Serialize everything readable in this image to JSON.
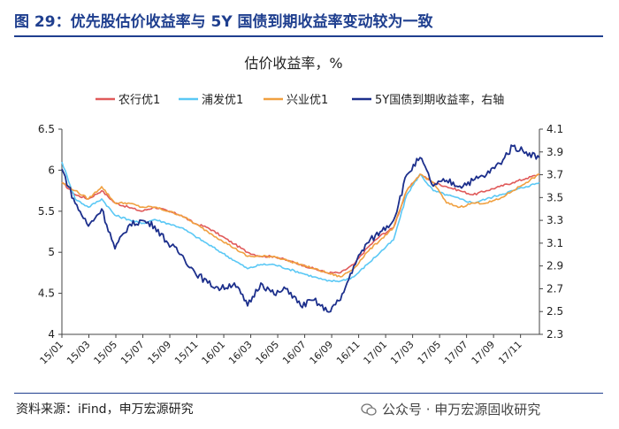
{
  "figure": {
    "title": "图 29：优先股估价收益率与 5Y 国债到期收益率变动较为一致",
    "source": "资料来源：iFind，申万宏源研究",
    "watermark": "公众号 · 申万宏源固收研究"
  },
  "chart_data": {
    "type": "line",
    "title": "估价收益率，%",
    "x_tick_labels": [
      "15/01",
      "15/03",
      "15/05",
      "15/07",
      "15/09",
      "15/11",
      "16/01",
      "16/03",
      "16/05",
      "16/07",
      "16/09",
      "16/11",
      "17/01",
      "17/03",
      "17/05",
      "17/07",
      "17/09",
      "17/11"
    ],
    "y_left": {
      "ticks": [
        "4",
        "4.5",
        "5",
        "5.5",
        "6",
        "6.5"
      ],
      "ylim": [
        4,
        6.5
      ]
    },
    "y_right": {
      "ticks": [
        "2.3",
        "2.5",
        "2.7",
        "2.9",
        "3.1",
        "3.3",
        "3.5",
        "3.7",
        "3.9",
        "4.1"
      ],
      "ylim": [
        2.3,
        4.1
      ]
    },
    "x_range": [
      0,
      36
    ],
    "series": [
      {
        "name": "农行优1",
        "axis": "left",
        "color": "#e05a5a",
        "points": [
          [
            0,
            5.85
          ],
          [
            1,
            5.7
          ],
          [
            2,
            5.65
          ],
          [
            3,
            5.75
          ],
          [
            4,
            5.6
          ],
          [
            5,
            5.55
          ],
          [
            6,
            5.5
          ],
          [
            7,
            5.55
          ],
          [
            8,
            5.5
          ],
          [
            9,
            5.45
          ],
          [
            10,
            5.35
          ],
          [
            11,
            5.3
          ],
          [
            12,
            5.2
          ],
          [
            13,
            5.1
          ],
          [
            14,
            5.0
          ],
          [
            15,
            4.95
          ],
          [
            16,
            4.95
          ],
          [
            17,
            4.9
          ],
          [
            18,
            4.85
          ],
          [
            19,
            4.8
          ],
          [
            20,
            4.75
          ],
          [
            21,
            4.75
          ],
          [
            22,
            4.85
          ],
          [
            23,
            5.05
          ],
          [
            24,
            5.2
          ],
          [
            25,
            5.3
          ],
          [
            26,
            5.75
          ],
          [
            27,
            5.95
          ],
          [
            28,
            5.85
          ],
          [
            29,
            5.8
          ],
          [
            30,
            5.75
          ],
          [
            31,
            5.7
          ],
          [
            32,
            5.75
          ],
          [
            33,
            5.8
          ],
          [
            34,
            5.85
          ],
          [
            35,
            5.9
          ],
          [
            36,
            5.95
          ]
        ]
      },
      {
        "name": "浦发优1",
        "axis": "left",
        "color": "#5ac8f5",
        "points": [
          [
            0,
            6.1
          ],
          [
            1,
            5.65
          ],
          [
            2,
            5.55
          ],
          [
            3,
            5.65
          ],
          [
            4,
            5.45
          ],
          [
            5,
            5.4
          ],
          [
            6,
            5.35
          ],
          [
            7,
            5.4
          ],
          [
            8,
            5.35
          ],
          [
            9,
            5.3
          ],
          [
            10,
            5.2
          ],
          [
            11,
            5.1
          ],
          [
            12,
            5.0
          ],
          [
            13,
            4.9
          ],
          [
            14,
            4.8
          ],
          [
            15,
            4.85
          ],
          [
            16,
            4.85
          ],
          [
            17,
            4.8
          ],
          [
            18,
            4.75
          ],
          [
            19,
            4.7
          ],
          [
            20,
            4.65
          ],
          [
            21,
            4.65
          ],
          [
            22,
            4.7
          ],
          [
            23,
            4.85
          ],
          [
            24,
            5.0
          ],
          [
            25,
            5.15
          ],
          [
            26,
            5.7
          ],
          [
            27,
            5.95
          ],
          [
            28,
            5.75
          ],
          [
            29,
            5.7
          ],
          [
            30,
            5.65
          ],
          [
            31,
            5.6
          ],
          [
            32,
            5.65
          ],
          [
            33,
            5.7
          ],
          [
            34,
            5.75
          ],
          [
            35,
            5.8
          ],
          [
            36,
            5.85
          ]
        ]
      },
      {
        "name": "兴业优1",
        "axis": "left",
        "color": "#f0a040",
        "points": [
          [
            0,
            5.85
          ],
          [
            1,
            5.75
          ],
          [
            2,
            5.65
          ],
          [
            3,
            5.8
          ],
          [
            4,
            5.6
          ],
          [
            5,
            5.6
          ],
          [
            6,
            5.55
          ],
          [
            7,
            5.55
          ],
          [
            8,
            5.5
          ],
          [
            9,
            5.45
          ],
          [
            10,
            5.35
          ],
          [
            11,
            5.25
          ],
          [
            12,
            5.15
          ],
          [
            13,
            5.05
          ],
          [
            14,
            4.95
          ],
          [
            15,
            4.95
          ],
          [
            16,
            4.95
          ],
          [
            17,
            4.9
          ],
          [
            18,
            4.85
          ],
          [
            19,
            4.8
          ],
          [
            20,
            4.75
          ],
          [
            21,
            4.7
          ],
          [
            22,
            4.8
          ],
          [
            23,
            5.0
          ],
          [
            24,
            5.15
          ],
          [
            25,
            5.3
          ],
          [
            26,
            5.75
          ],
          [
            27,
            5.95
          ],
          [
            28,
            5.85
          ],
          [
            29,
            5.6
          ],
          [
            30,
            5.55
          ],
          [
            31,
            5.6
          ],
          [
            32,
            5.6
          ],
          [
            33,
            5.65
          ],
          [
            34,
            5.75
          ],
          [
            35,
            5.85
          ],
          [
            36,
            5.95
          ]
        ]
      },
      {
        "name": "5Y国债到期收益率，右轴",
        "axis": "right",
        "color": "#1c2f8c",
        "points": [
          [
            0,
            3.75
          ],
          [
            1,
            3.45
          ],
          [
            2,
            3.25
          ],
          [
            3,
            3.4
          ],
          [
            4,
            3.05
          ],
          [
            5,
            3.25
          ],
          [
            6,
            3.3
          ],
          [
            7,
            3.25
          ],
          [
            8,
            3.1
          ],
          [
            9,
            3.0
          ],
          [
            10,
            2.85
          ],
          [
            11,
            2.75
          ],
          [
            12,
            2.7
          ],
          [
            13,
            2.75
          ],
          [
            14,
            2.55
          ],
          [
            15,
            2.75
          ],
          [
            16,
            2.65
          ],
          [
            17,
            2.7
          ],
          [
            18,
            2.55
          ],
          [
            19,
            2.6
          ],
          [
            20,
            2.5
          ],
          [
            21,
            2.6
          ],
          [
            22,
            2.9
          ],
          [
            23,
            3.1
          ],
          [
            24,
            3.2
          ],
          [
            25,
            3.3
          ],
          [
            26,
            3.7
          ],
          [
            27,
            3.85
          ],
          [
            28,
            3.6
          ],
          [
            29,
            3.65
          ],
          [
            30,
            3.6
          ],
          [
            31,
            3.65
          ],
          [
            32,
            3.7
          ],
          [
            33,
            3.8
          ],
          [
            34,
            3.95
          ],
          [
            35,
            3.9
          ],
          [
            36,
            3.85
          ]
        ]
      }
    ],
    "legend_position": "top"
  }
}
